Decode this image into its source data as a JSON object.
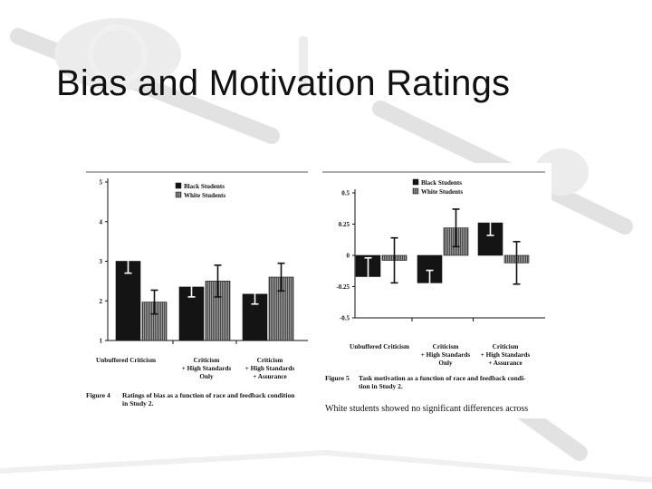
{
  "slide": {
    "title": "Bias and Motivation Ratings"
  },
  "colors": {
    "black_bar": "#141414",
    "white_bar_hatch": "#7a7a7a",
    "background_art": "#e4e4e4"
  },
  "figures": [
    {
      "label": "Figure 4",
      "caption_line1": "Ratings of bias as a function of race and feedback condition",
      "caption_line2": "in Study 2."
    },
    {
      "label": "Figure 5",
      "caption_line1": "Task motivation as a function of race and feedback condi-",
      "caption_line2": "tion in Study 2.",
      "trailing_text": "White students showed no significant differences across"
    }
  ],
  "chart_data": [
    {
      "type": "bar",
      "title": "",
      "xlabel": "",
      "ylabel": "",
      "categories": [
        [
          "Unbuffered Criticism"
        ],
        [
          "Criticism",
          "+ High Standards",
          "Only"
        ],
        [
          "Criticism",
          "+ High Standards",
          "+ Assurance"
        ]
      ],
      "series": [
        {
          "name": "Black Students",
          "values": [
            3.0,
            2.35,
            2.17
          ],
          "error": [
            0.3,
            0.25,
            0.25
          ]
        },
        {
          "name": "White Students",
          "values": [
            1.97,
            2.5,
            2.6
          ],
          "error": [
            0.3,
            0.4,
            0.35
          ]
        }
      ],
      "ylim": [
        1,
        5
      ],
      "yticks": [
        "1",
        "2",
        "3",
        "4",
        "5"
      ],
      "legend": "top-right",
      "grid": false
    },
    {
      "type": "bar",
      "title": "",
      "xlabel": "",
      "ylabel": "",
      "categories": [
        [
          "Unbuffered Criticism"
        ],
        [
          "Criticism",
          "+ High Standards",
          "Only"
        ],
        [
          "Criticism",
          "+ High Standards",
          "+ Assurance"
        ]
      ],
      "series": [
        {
          "name": "Black Students",
          "values": [
            -0.17,
            -0.22,
            0.26
          ],
          "error": [
            0.15,
            0.1,
            0.1
          ]
        },
        {
          "name": "White Students",
          "values": [
            -0.04,
            0.22,
            -0.06
          ],
          "error": [
            0.18,
            0.15,
            0.17
          ]
        }
      ],
      "ylim": [
        -0.5,
        0.5
      ],
      "yticks": [
        "-0.5",
        "-0.25",
        "0",
        "0.25",
        "0.5"
      ],
      "legend": "top-right",
      "grid": false
    }
  ]
}
